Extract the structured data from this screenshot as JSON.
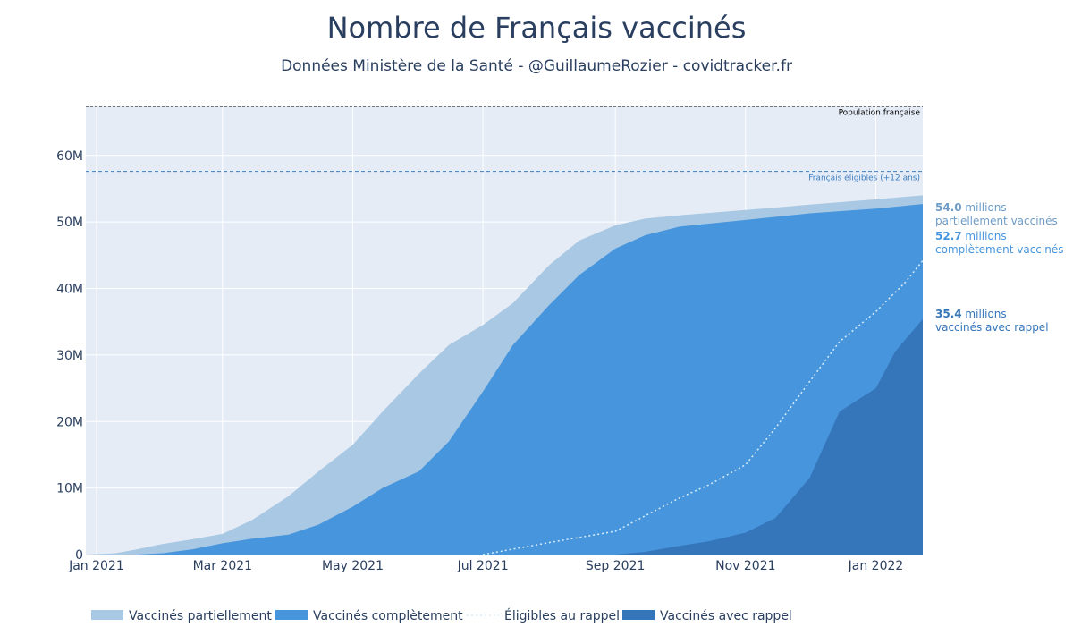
{
  "chart_data": {
    "type": "area",
    "title": "Nombre de Français vaccinés",
    "subtitle": "Données Ministère de la Santé - @GuillaumeRozier - covidtracker.fr",
    "x_range": [
      "2020-12-27",
      "2022-01-23"
    ],
    "y_range": [
      0,
      67.5
    ],
    "x_ticks": [
      {
        "date": "2021-01-01",
        "label": "Jan 2021"
      },
      {
        "date": "2021-03-01",
        "label": "Mar 2021"
      },
      {
        "date": "2021-05-01",
        "label": "May 2021"
      },
      {
        "date": "2021-07-01",
        "label": "Jul 2021"
      },
      {
        "date": "2021-09-01",
        "label": "Sep 2021"
      },
      {
        "date": "2021-11-01",
        "label": "Nov 2021"
      },
      {
        "date": "2022-01-01",
        "label": "Jan 2022"
      }
    ],
    "y_ticks": [
      {
        "value": 0,
        "label": "0"
      },
      {
        "value": 10,
        "label": "10M"
      },
      {
        "value": 20,
        "label": "20M"
      },
      {
        "value": 30,
        "label": "30M"
      },
      {
        "value": 40,
        "label": "40M"
      },
      {
        "value": 50,
        "label": "50M"
      },
      {
        "value": 60,
        "label": "60M"
      }
    ],
    "grid": true,
    "legend_position": "bottom",
    "reference_lines": [
      {
        "label": "Population française",
        "value": 67.4,
        "color": "#000000"
      },
      {
        "label": "Français éligibles (+12 ans)",
        "value": 57.6,
        "color": "#3d7fc1"
      }
    ],
    "series": [
      {
        "name": "Vaccinés partiellement",
        "style": "area",
        "color": "#a9c8e3",
        "points": [
          [
            "2020-12-27",
            0
          ],
          [
            "2021-01-10",
            0.2
          ],
          [
            "2021-01-20",
            0.8
          ],
          [
            "2021-02-01",
            1.6
          ],
          [
            "2021-02-15",
            2.3
          ],
          [
            "2021-03-01",
            3.1
          ],
          [
            "2021-03-15",
            5.2
          ],
          [
            "2021-04-01",
            8.8
          ],
          [
            "2021-04-15",
            12.5
          ],
          [
            "2021-05-01",
            16.5
          ],
          [
            "2021-05-15",
            21.5
          ],
          [
            "2021-06-01",
            27.2
          ],
          [
            "2021-06-15",
            31.5
          ],
          [
            "2021-07-01",
            34.5
          ],
          [
            "2021-07-15",
            37.8
          ],
          [
            "2021-08-01",
            43.5
          ],
          [
            "2021-08-15",
            47.2
          ],
          [
            "2021-09-01",
            49.5
          ],
          [
            "2021-09-15",
            50.5
          ],
          [
            "2021-10-01",
            51.0
          ],
          [
            "2021-11-01",
            51.8
          ],
          [
            "2021-12-01",
            52.6
          ],
          [
            "2022-01-01",
            53.4
          ],
          [
            "2022-01-23",
            54.0
          ]
        ]
      },
      {
        "name": "Vaccinés complètement",
        "style": "area",
        "color": "#4795dd",
        "points": [
          [
            "2020-12-27",
            0
          ],
          [
            "2021-01-20",
            0
          ],
          [
            "2021-02-01",
            0.2
          ],
          [
            "2021-02-15",
            0.8
          ],
          [
            "2021-03-01",
            1.7
          ],
          [
            "2021-03-15",
            2.4
          ],
          [
            "2021-04-01",
            3.0
          ],
          [
            "2021-04-15",
            4.5
          ],
          [
            "2021-05-01",
            7.2
          ],
          [
            "2021-05-15",
            10.0
          ],
          [
            "2021-06-01",
            12.5
          ],
          [
            "2021-06-15",
            17.0
          ],
          [
            "2021-07-01",
            24.5
          ],
          [
            "2021-07-15",
            31.5
          ],
          [
            "2021-08-01",
            37.5
          ],
          [
            "2021-08-15",
            42.0
          ],
          [
            "2021-09-01",
            46.0
          ],
          [
            "2021-09-15",
            48.0
          ],
          [
            "2021-10-01",
            49.3
          ],
          [
            "2021-11-01",
            50.3
          ],
          [
            "2021-12-01",
            51.3
          ],
          [
            "2022-01-01",
            52.0
          ],
          [
            "2022-01-23",
            52.7
          ]
        ]
      },
      {
        "name": "Éligibles au rappel",
        "style": "dotted-line",
        "color": "#d8ecf8",
        "points": [
          [
            "2021-07-01",
            0
          ],
          [
            "2021-08-01",
            1.8
          ],
          [
            "2021-09-01",
            3.5
          ],
          [
            "2021-10-01",
            8.5
          ],
          [
            "2021-10-15",
            10.5
          ],
          [
            "2021-11-01",
            13.5
          ],
          [
            "2021-11-15",
            19.0
          ],
          [
            "2021-12-01",
            26.0
          ],
          [
            "2021-12-15",
            32.0
          ],
          [
            "2022-01-01",
            36.5
          ],
          [
            "2022-01-15",
            41.0
          ],
          [
            "2022-01-23",
            44.2
          ]
        ]
      },
      {
        "name": "Vaccinés avec rappel",
        "style": "area",
        "color": "#3575ba",
        "points": [
          [
            "2020-12-27",
            0
          ],
          [
            "2021-09-01",
            0
          ],
          [
            "2021-09-15",
            0.4
          ],
          [
            "2021-10-01",
            1.3
          ],
          [
            "2021-10-15",
            2.0
          ],
          [
            "2021-11-01",
            3.3
          ],
          [
            "2021-11-15",
            5.5
          ],
          [
            "2021-12-01",
            11.5
          ],
          [
            "2021-12-15",
            21.5
          ],
          [
            "2022-01-01",
            25.0
          ],
          [
            "2022-01-10",
            30.5
          ],
          [
            "2022-01-23",
            35.4
          ]
        ]
      }
    ],
    "annotations": [
      {
        "value": "54.0",
        "unit": " millions",
        "text": "partiellement vaccinés",
        "color": "#6e9cc7",
        "y": 54.0
      },
      {
        "value": "52.7",
        "unit": " millions",
        "text": "complètement vaccinés",
        "color": "#4795dd",
        "y": 52.7
      },
      {
        "value": "35.4",
        "unit": " millions",
        "text": "vaccinés avec rappel",
        "color": "#3575ba",
        "y": 35.4
      }
    ]
  }
}
